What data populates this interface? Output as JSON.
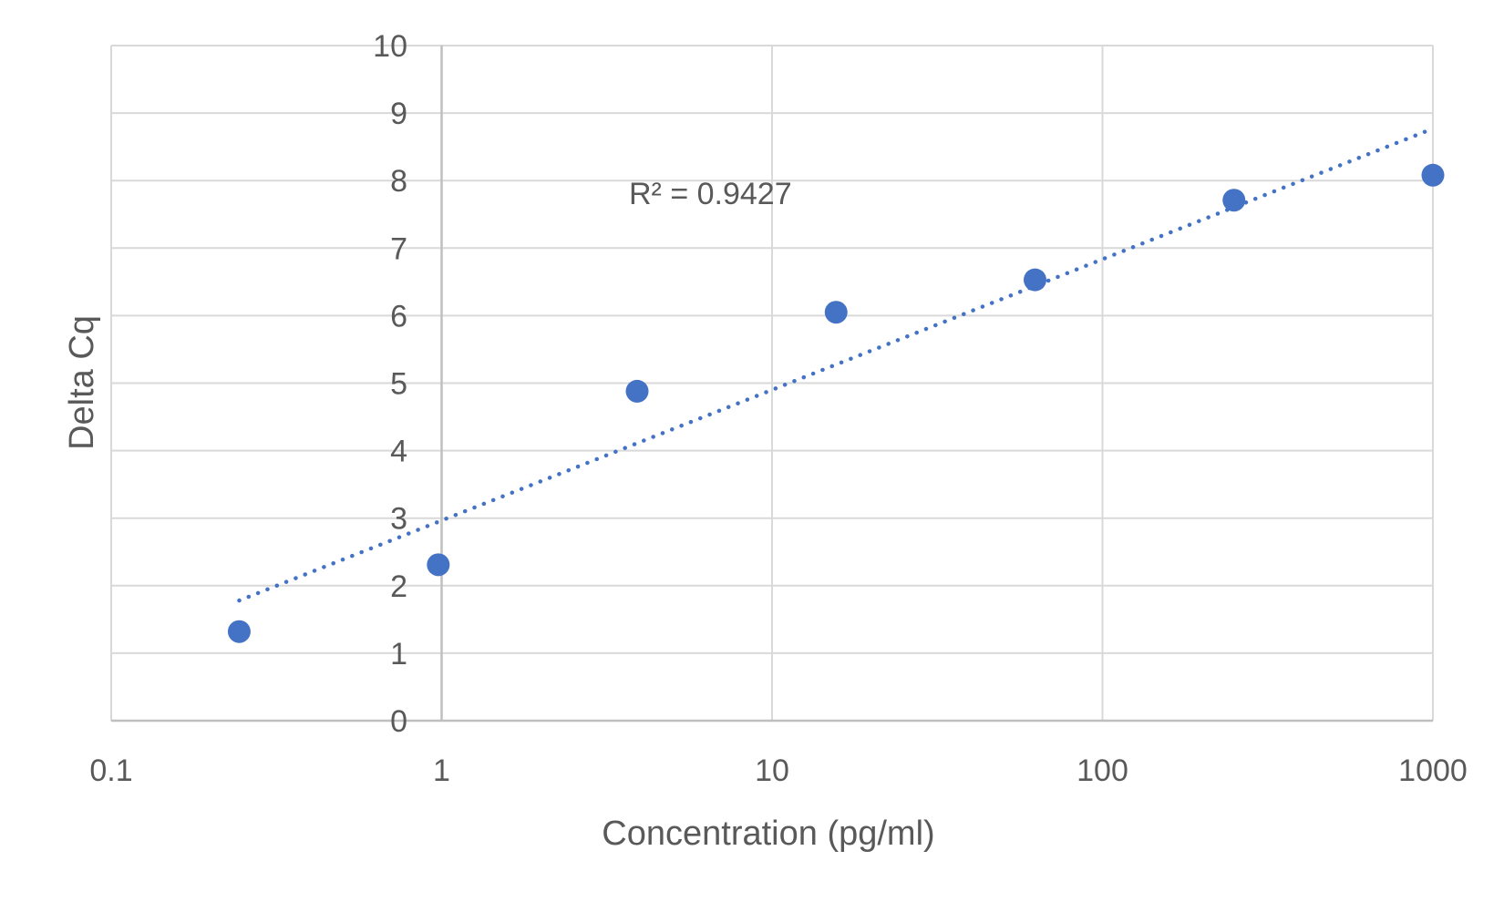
{
  "chart_data": {
    "type": "scatter",
    "xlabel": "Concentration (pg/ml)",
    "ylabel": "Delta Cq",
    "x_scale": "log",
    "xlim": [
      0.1,
      1000
    ],
    "ylim": [
      0,
      10
    ],
    "x_tick_labels": [
      "0.1",
      "1",
      "10",
      "100",
      "1000"
    ],
    "y_tick_labels": [
      "0",
      "1",
      "2",
      "3",
      "4",
      "5",
      "6",
      "7",
      "8",
      "9",
      "10"
    ],
    "grid": true,
    "legend": "none",
    "series": [
      {
        "color": "#4472c4",
        "x": [
          0.244,
          0.977,
          3.906,
          15.625,
          62.5,
          250,
          1000
        ],
        "y": [
          1.32,
          2.31,
          4.88,
          6.05,
          6.53,
          7.71,
          8.08
        ]
      }
    ],
    "trendline": {
      "type": "logarithmic",
      "style": "dotted",
      "color": "#4472c4",
      "x": [
        0.244,
        1000
      ],
      "y": [
        1.78,
        8.77
      ]
    },
    "annotations": [
      {
        "text": "R² = 0.9427"
      }
    ]
  }
}
